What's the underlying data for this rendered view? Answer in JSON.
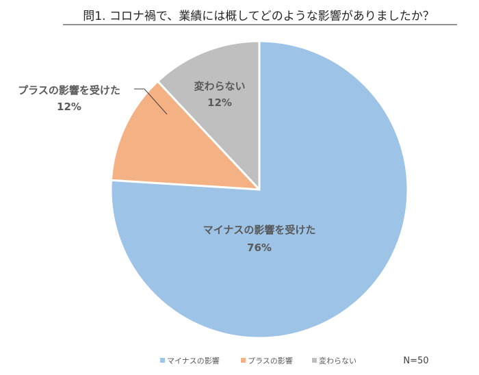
{
  "chart_data": {
    "type": "pie",
    "title": "問1. コロナ禍で、業績には概してどのような影響がありましたか？",
    "slices": [
      {
        "label": "変わらない",
        "value": 12,
        "value_label": "12%",
        "legend": "変わらない",
        "color": "#bfbfbf"
      },
      {
        "label": "プラスの影響を受けた",
        "value": 12,
        "value_label": "12%",
        "legend": "プラスの影響",
        "color": "#f4b183"
      },
      {
        "label": "マイナスの影響を受けた",
        "value": 76,
        "value_label": "76%",
        "legend": "マイナスの影響",
        "color": "#9dc3e6"
      }
    ],
    "legend_order": [
      2,
      1,
      0
    ],
    "legend_position": "bottom",
    "note": "N=50"
  }
}
